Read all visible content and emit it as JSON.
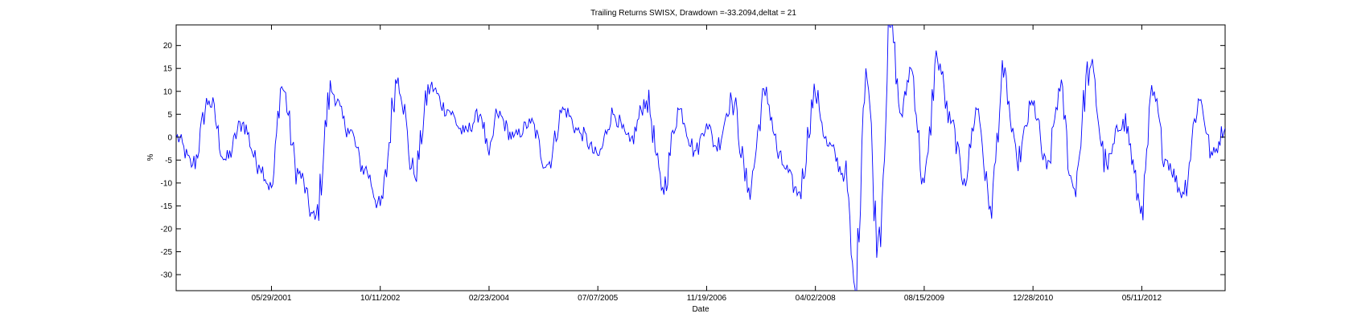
{
  "chart_data": {
    "type": "line",
    "title": "Trailing Returns SWISX, Drawdown =-33.2094,deltat = 21",
    "xlabel": "Date",
    "ylabel": "%",
    "x_tick_labels": [
      "05/29/2001",
      "10/11/2002",
      "02/23/2004",
      "07/07/2005",
      "11/19/2006",
      "04/02/2008",
      "08/15/2009",
      "12/28/2010",
      "05/11/2012"
    ],
    "x_tick_values": [
      "2001-05-29",
      "2002-10-11",
      "2004-02-23",
      "2005-07-07",
      "2006-11-19",
      "2008-04-02",
      "2009-08-15",
      "2010-12-28",
      "2012-05-11"
    ],
    "xlim": [
      "2000-03-17",
      "2013-05-29"
    ],
    "y_tick_labels": [
      "-30",
      "-25",
      "-20",
      "-15",
      "-10",
      "-5",
      "0",
      "5",
      "10",
      "15",
      "20"
    ],
    "y_ticks": [
      -30,
      -25,
      -20,
      -15,
      -10,
      -5,
      0,
      5,
      10,
      15,
      20
    ],
    "ylim": [
      -33.5,
      24.5
    ],
    "grid": false,
    "series_color": "#0000ff",
    "series": [
      {
        "x": [
          "2000-03-17",
          "2000-06-01",
          "2000-08-15",
          "2000-11-01",
          "2001-01-15",
          "2001-04-01",
          "2001-05-29",
          "2001-07-15",
          "2001-10-01",
          "2001-12-15",
          "2002-03-01",
          "2002-05-15",
          "2002-08-01",
          "2002-10-11",
          "2003-01-01",
          "2003-03-15",
          "2003-05-30",
          "2003-08-15",
          "2003-11-01",
          "2004-01-15",
          "2004-02-23",
          "2004-04-01",
          "2004-06-15",
          "2004-09-01",
          "2004-11-15",
          "2005-02-01",
          "2005-04-15",
          "2005-07-07",
          "2005-09-15",
          "2005-12-01",
          "2006-02-15",
          "2006-05-01",
          "2006-07-15",
          "2006-09-30",
          "2006-11-19",
          "2007-01-01",
          "2007-03-15",
          "2007-06-01",
          "2007-08-15",
          "2007-11-01",
          "2008-01-15",
          "2008-04-02",
          "2008-06-01",
          "2008-08-15",
          "2008-10-01",
          "2008-11-20",
          "2009-01-15",
          "2009-03-15",
          "2009-05-01",
          "2009-06-15",
          "2009-08-15",
          "2009-10-15",
          "2009-12-15",
          "2010-02-15",
          "2010-04-15",
          "2010-06-15",
          "2010-08-15",
          "2010-10-15",
          "2010-12-28",
          "2011-03-01",
          "2011-05-01",
          "2011-07-01",
          "2011-09-15",
          "2011-12-01",
          "2012-02-15",
          "2012-05-11",
          "2012-07-01",
          "2012-09-01",
          "2012-11-15",
          "2013-02-01",
          "2013-04-01",
          "2013-05-29"
        ],
        "y": [
          0,
          -6,
          8,
          -5,
          3,
          -6,
          -11,
          11,
          -8,
          -18,
          10,
          2,
          -7,
          -15,
          13,
          -8,
          11,
          6,
          1,
          5,
          -4,
          5,
          0,
          3,
          -6,
          6,
          1,
          -4,
          5,
          -1,
          8,
          -11,
          6,
          -3,
          3,
          -2,
          8,
          -11,
          9,
          -6,
          -12,
          9,
          -2,
          -8,
          -33,
          15,
          -22,
          24,
          5,
          15,
          -10,
          17,
          3,
          -9,
          6,
          -15,
          13,
          -5,
          7,
          -7,
          10,
          -11,
          15,
          -6,
          4,
          -15,
          9,
          -5,
          -12,
          8,
          -4,
          2
        ]
      }
    ]
  }
}
